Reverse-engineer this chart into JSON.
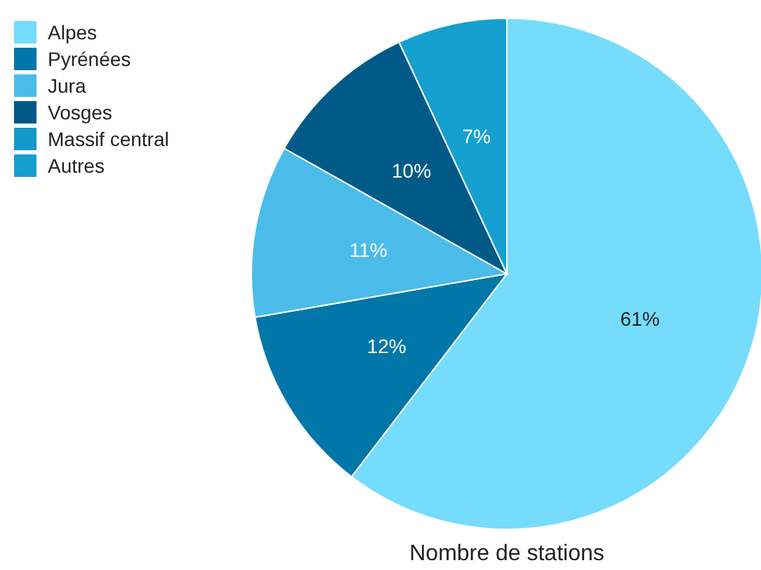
{
  "chart_data": {
    "type": "pie",
    "title": "Nombre de stations",
    "categories": [
      "Alpes",
      "Pyrénées",
      "Jura",
      "Vosges",
      "Massif central",
      "Autres"
    ],
    "values": [
      61,
      12,
      11,
      10,
      0,
      7
    ],
    "value_labels": [
      "61%",
      "12%",
      "11%",
      "10%",
      null,
      "7%"
    ],
    "colors": [
      "#76dcfb",
      "#0077a8",
      "#4bbcea",
      "#005a88",
      "#1399c9",
      "#16a0d0"
    ],
    "legend": "top left"
  }
}
